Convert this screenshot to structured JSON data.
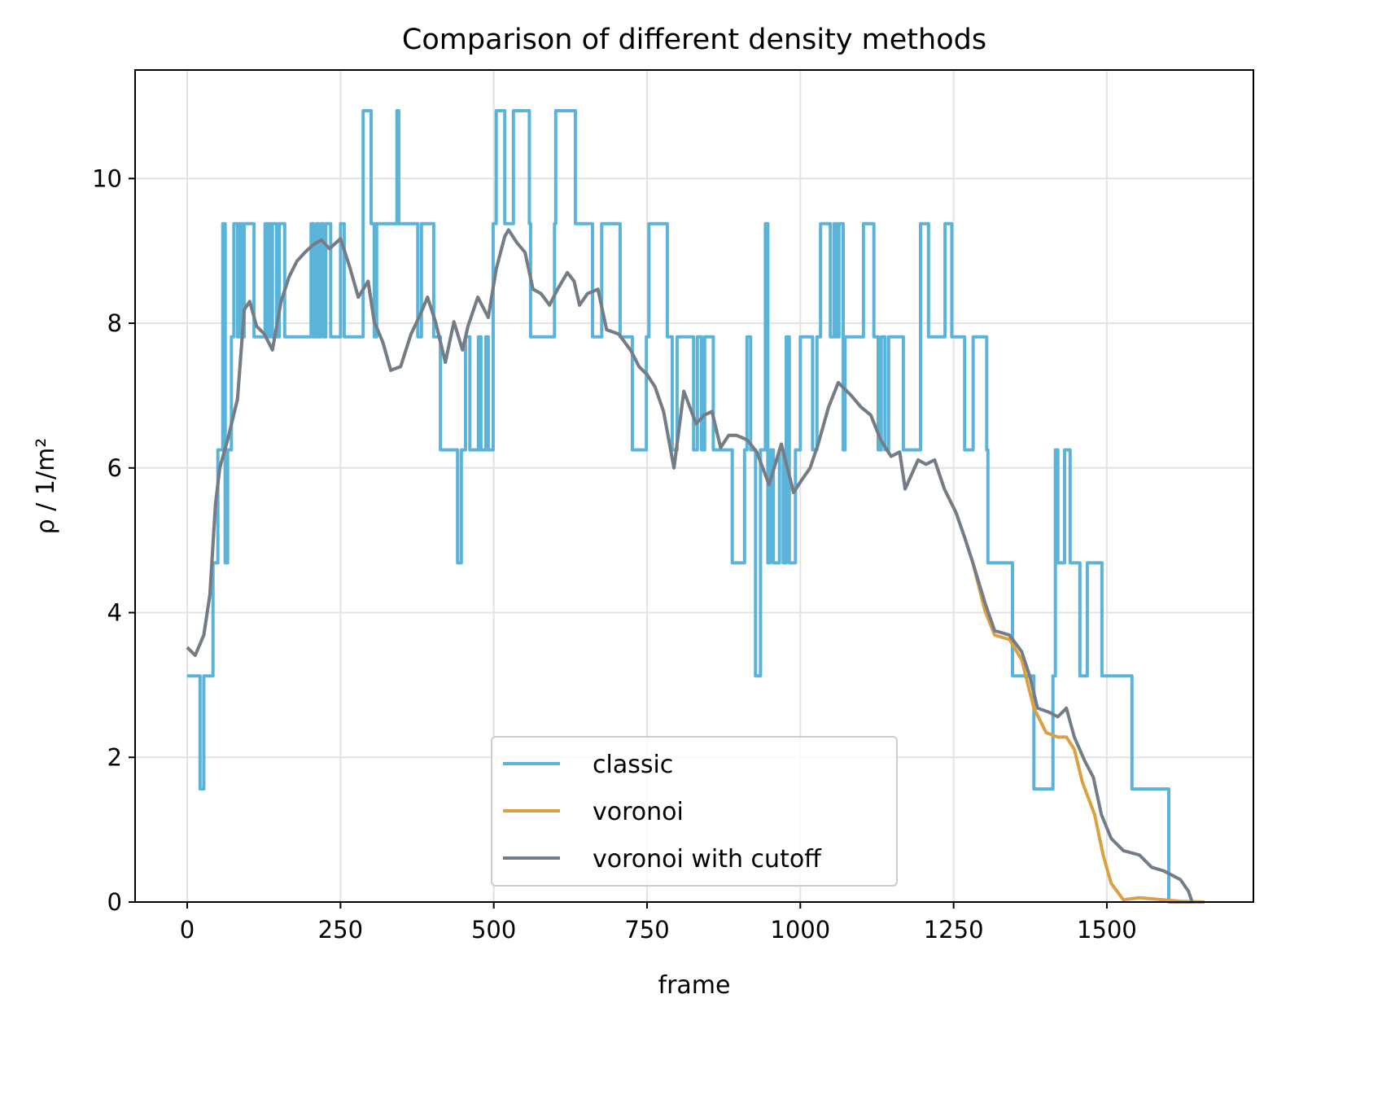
{
  "chart_data": {
    "type": "line",
    "title": "Comparison of different density methods",
    "xlabel": "frame",
    "ylabel": "ρ / 1/m²",
    "xlim": [
      -85,
      1739
    ],
    "ylim": [
      0,
      11.5
    ],
    "xticks": [
      0,
      250,
      500,
      750,
      1000,
      1250,
      1500
    ],
    "yticks": [
      0,
      2,
      4,
      6,
      8,
      10
    ],
    "grid": true,
    "legend": "bottom-center",
    "series": [
      {
        "name": "classic",
        "color": "#5ab4d9",
        "drawstyle": "steps-post",
        "x": [
          0,
          21,
          27,
          42,
          50,
          58,
          62,
          66,
          72,
          76,
          82,
          85,
          90,
          93,
          109,
          127,
          131,
          134,
          138,
          139,
          146,
          150,
          159,
          202,
          206,
          211,
          214,
          218,
          222,
          226,
          234,
          250,
          256,
          287,
          300,
          305,
          309,
          342,
          345,
          376,
          382,
          402,
          413,
          441,
          447,
          454,
          461,
          475,
          479,
          487,
          491,
          499,
          504,
          518,
          532,
          558,
          560,
          599,
          601,
          633,
          661,
          676,
          706,
          726,
          749,
          753,
          783,
          791,
          799,
          826,
          832,
          839,
          844,
          858,
          889,
          909,
          913,
          919,
          927,
          935,
          943,
          947,
          951,
          956,
          966,
          972,
          977,
          982,
          992,
          1000,
          1020,
          1027,
          1033,
          1049,
          1055,
          1059,
          1063,
          1070,
          1073,
          1103,
          1120,
          1127,
          1132,
          1138,
          1144,
          1168,
          1196,
          1209,
          1236,
          1247,
          1268,
          1282,
          1304,
          1306,
          1346,
          1381,
          1412,
          1416,
          1420,
          1431,
          1440,
          1456,
          1468,
          1492,
          1541,
          1601,
          1659
        ],
        "y": [
          3.125,
          1.5625,
          3.125,
          4.6875,
          6.25,
          9.375,
          4.6875,
          6.25,
          7.8125,
          9.375,
          7.8125,
          9.375,
          7.8125,
          9.375,
          7.8125,
          9.375,
          7.8125,
          9.375,
          7.8125,
          9.375,
          7.8125,
          9.375,
          7.8125,
          9.375,
          7.8125,
          9.375,
          7.8125,
          9.375,
          7.8125,
          9.375,
          7.8125,
          9.375,
          7.8125,
          10.9375,
          9.375,
          7.8125,
          9.375,
          10.9375,
          9.375,
          7.8125,
          9.375,
          7.8125,
          6.25,
          4.6875,
          6.25,
          7.8125,
          6.25,
          7.8125,
          6.25,
          7.8125,
          6.25,
          9.375,
          10.9375,
          9.375,
          10.9375,
          9.375,
          7.8125,
          9.375,
          10.9375,
          9.375,
          7.8125,
          9.375,
          7.8125,
          6.25,
          7.8125,
          9.375,
          7.8125,
          6.25,
          7.8125,
          6.25,
          7.8125,
          6.25,
          7.8125,
          6.25,
          4.6875,
          6.25,
          7.8125,
          6.25,
          3.125,
          6.25,
          9.375,
          4.6875,
          6.25,
          4.6875,
          6.25,
          4.6875,
          7.8125,
          4.6875,
          6.25,
          7.8125,
          6.25,
          7.8125,
          9.375,
          7.8125,
          9.375,
          7.8125,
          9.375,
          6.25,
          7.8125,
          9.375,
          7.8125,
          6.25,
          7.8125,
          6.25,
          7.8125,
          6.25,
          9.375,
          7.8125,
          9.375,
          7.8125,
          6.25,
          7.8125,
          6.25,
          4.6875,
          3.125,
          1.5625,
          3.125,
          6.25,
          4.6875,
          6.25,
          4.6875,
          3.125,
          4.6875,
          3.125,
          1.5625,
          0,
          0
        ]
      },
      {
        "name": "voronoi",
        "color": "#dba040",
        "drawstyle": "default",
        "x": [
          0,
          13,
          27,
          37,
          46,
          53,
          66,
          82,
          93,
          102,
          113,
          126,
          139,
          153,
          166,
          179,
          192,
          206,
          219,
          232,
          250,
          266,
          279,
          295,
          305,
          319,
          332,
          348,
          365,
          378,
          392,
          405,
          421,
          435,
          449,
          458,
          474,
          491,
          504,
          518,
          524,
          538,
          551,
          564,
          577,
          591,
          604,
          620,
          631,
          640,
          653,
          670,
          684,
          704,
          723,
          737,
          750,
          763,
          777,
          794,
          810,
          830,
          843,
          856,
          870,
          883,
          896,
          913,
          929,
          949,
          969,
          989,
          1002,
          1016,
          1029,
          1046,
          1062,
          1082,
          1099,
          1115,
          1131,
          1148,
          1162,
          1171,
          1192,
          1205,
          1219,
          1235,
          1254,
          1268,
          1281,
          1301,
          1317,
          1341,
          1361,
          1381,
          1401,
          1420,
          1434,
          1447,
          1460,
          1480,
          1494,
          1507,
          1527,
          1553,
          1620,
          1659
        ],
        "y": [
          3.52,
          3.41,
          3.69,
          4.25,
          5.49,
          6.0,
          6.39,
          6.95,
          8.19,
          8.3,
          7.96,
          7.85,
          7.63,
          8.3,
          8.64,
          8.86,
          8.98,
          9.09,
          9.15,
          9.03,
          9.17,
          8.75,
          8.36,
          8.58,
          8.02,
          7.74,
          7.35,
          7.4,
          7.85,
          8.08,
          8.36,
          8.02,
          7.46,
          8.02,
          7.63,
          7.96,
          8.36,
          8.08,
          8.75,
          9.2,
          9.29,
          9.11,
          8.98,
          8.47,
          8.41,
          8.25,
          8.47,
          8.7,
          8.58,
          8.25,
          8.41,
          8.47,
          7.91,
          7.85,
          7.63,
          7.4,
          7.29,
          7.12,
          6.78,
          6.0,
          7.06,
          6.61,
          6.73,
          6.78,
          6.28,
          6.45,
          6.45,
          6.39,
          6.22,
          5.77,
          6.33,
          5.66,
          5.83,
          6.0,
          6.33,
          6.84,
          7.18,
          7.01,
          6.84,
          6.73,
          6.39,
          6.16,
          6.22,
          5.71,
          6.11,
          6.05,
          6.11,
          5.71,
          5.38,
          5.04,
          4.7,
          4.03,
          3.69,
          3.63,
          3.35,
          2.68,
          2.34,
          2.28,
          2.28,
          2.11,
          1.66,
          1.21,
          0.65,
          0.26,
          0.03,
          0.06,
          0.01,
          0
        ]
      },
      {
        "name": "voronoi with cutoff",
        "color": "#737d8a",
        "drawstyle": "default",
        "x": [
          0,
          13,
          27,
          37,
          46,
          53,
          66,
          82,
          93,
          102,
          113,
          126,
          139,
          153,
          166,
          179,
          192,
          206,
          219,
          232,
          250,
          266,
          279,
          295,
          305,
          319,
          332,
          348,
          365,
          378,
          392,
          405,
          421,
          435,
          449,
          458,
          474,
          491,
          504,
          518,
          524,
          538,
          551,
          564,
          577,
          591,
          604,
          620,
          631,
          640,
          653,
          670,
          684,
          704,
          723,
          737,
          750,
          763,
          777,
          794,
          810,
          830,
          843,
          856,
          870,
          883,
          896,
          913,
          929,
          949,
          969,
          989,
          1002,
          1016,
          1029,
          1046,
          1062,
          1082,
          1099,
          1115,
          1131,
          1148,
          1162,
          1171,
          1192,
          1205,
          1219,
          1235,
          1254,
          1268,
          1281,
          1301,
          1317,
          1341,
          1361,
          1374,
          1387,
          1407,
          1420,
          1434,
          1447,
          1464,
          1478,
          1491,
          1507,
          1527,
          1553,
          1573,
          1593,
          1620,
          1633,
          1639
        ],
        "y": [
          3.52,
          3.41,
          3.69,
          4.25,
          5.49,
          6.0,
          6.39,
          6.95,
          8.19,
          8.3,
          7.96,
          7.85,
          7.63,
          8.3,
          8.64,
          8.86,
          8.98,
          9.09,
          9.15,
          9.03,
          9.17,
          8.75,
          8.36,
          8.58,
          8.02,
          7.74,
          7.35,
          7.4,
          7.85,
          8.08,
          8.36,
          8.02,
          7.46,
          8.02,
          7.63,
          7.96,
          8.36,
          8.08,
          8.75,
          9.2,
          9.29,
          9.11,
          8.98,
          8.47,
          8.41,
          8.25,
          8.47,
          8.7,
          8.58,
          8.25,
          8.41,
          8.47,
          7.91,
          7.85,
          7.63,
          7.4,
          7.29,
          7.12,
          6.78,
          6.0,
          7.06,
          6.61,
          6.73,
          6.78,
          6.28,
          6.45,
          6.45,
          6.39,
          6.22,
          5.77,
          6.33,
          5.66,
          5.83,
          6.0,
          6.33,
          6.84,
          7.18,
          7.01,
          6.84,
          6.73,
          6.39,
          6.16,
          6.22,
          5.71,
          6.11,
          6.05,
          6.11,
          5.71,
          5.38,
          5.04,
          4.7,
          4.14,
          3.75,
          3.69,
          3.46,
          3.13,
          2.68,
          2.62,
          2.56,
          2.68,
          2.28,
          1.95,
          1.72,
          1.21,
          0.88,
          0.71,
          0.65,
          0.48,
          0.43,
          0.31,
          0.15,
          0
        ]
      }
    ]
  }
}
